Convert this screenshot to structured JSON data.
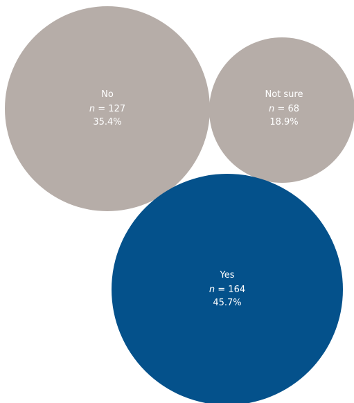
{
  "chart_data": {
    "type": "bubble",
    "title": "",
    "bubble_label_n_prefix": "n",
    "bubbles": [
      {
        "label": "No",
        "n": 127,
        "percent": "35.4%",
        "color": "#b6ada8"
      },
      {
        "label": "Not sure",
        "n": 68,
        "percent": "18.9%",
        "color": "#b6ada8"
      },
      {
        "label": "Yes",
        "n": 164,
        "percent": "45.7%",
        "color": "#04518b"
      }
    ]
  }
}
